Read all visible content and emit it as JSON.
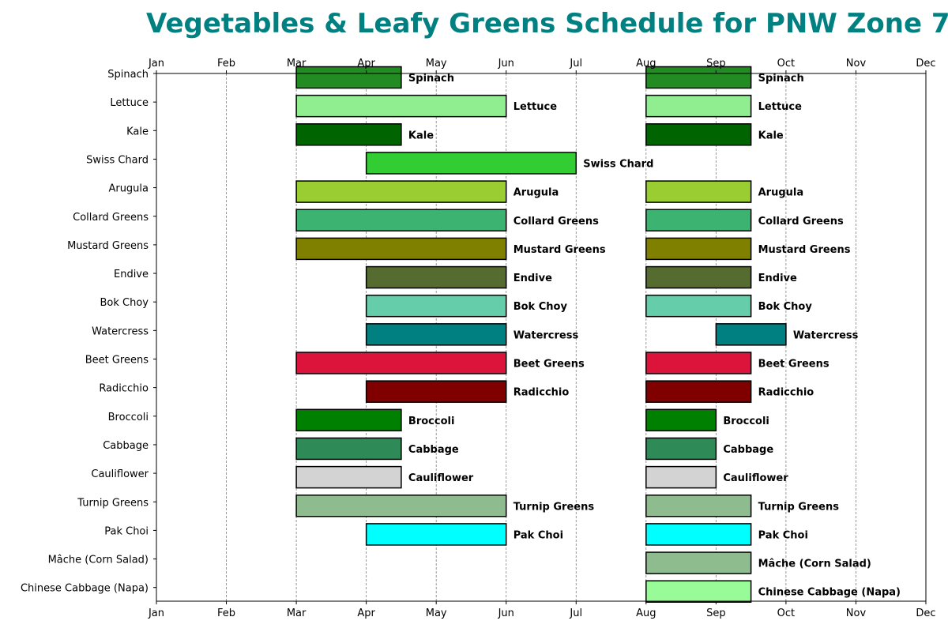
{
  "chart_data": {
    "type": "bar",
    "orientation": "horizontal-gantt",
    "title": "Vegetables & Leafy Greens Schedule for PNW Zone 7",
    "title_color": "#008080",
    "xlabel": "",
    "ylabel": "",
    "x_unit": "month",
    "xlim": [
      0,
      11
    ],
    "x_ticks": [
      "Jan",
      "Feb",
      "Mar",
      "Apr",
      "May",
      "Jun",
      "Jul",
      "Aug",
      "Sep",
      "Oct",
      "Nov",
      "Dec"
    ],
    "x_tick_positions": "top and bottom",
    "grid": "vertical dashed",
    "legend": "none",
    "categories": [
      "Spinach",
      "Lettuce",
      "Kale",
      "Swiss Chard",
      "Arugula",
      "Collard Greens",
      "Mustard Greens",
      "Endive",
      "Bok Choy",
      "Watercress",
      "Beet Greens",
      "Radicchio",
      "Broccoli",
      "Cabbage",
      "Cauliflower",
      "Turnip Greens",
      "Pak Choi",
      "Mâche (Corn Salad)",
      "Chinese Cabbage (Napa)"
    ],
    "series": [
      {
        "values": [
          {
            "category": "Spinach",
            "color": "#228B22",
            "periods": [
              [
                2.0,
                3.5
              ],
              [
                7.0,
                8.5
              ]
            ]
          },
          {
            "category": "Lettuce",
            "color": "#90EE90",
            "periods": [
              [
                2.0,
                5.0
              ],
              [
                7.0,
                8.5
              ]
            ]
          },
          {
            "category": "Kale",
            "color": "#006400",
            "periods": [
              [
                2.0,
                3.5
              ],
              [
                7.0,
                8.5
              ]
            ]
          },
          {
            "category": "Swiss Chard",
            "color": "#32CD32",
            "periods": [
              [
                3.0,
                6.0
              ]
            ]
          },
          {
            "category": "Arugula",
            "color": "#9ACD32",
            "periods": [
              [
                2.0,
                5.0
              ],
              [
                7.0,
                8.5
              ]
            ]
          },
          {
            "category": "Collard Greens",
            "color": "#3CB371",
            "periods": [
              [
                2.0,
                5.0
              ],
              [
                7.0,
                8.5
              ]
            ]
          },
          {
            "category": "Mustard Greens",
            "color": "#808000",
            "periods": [
              [
                2.0,
                5.0
              ],
              [
                7.0,
                8.5
              ]
            ]
          },
          {
            "category": "Endive",
            "color": "#556B2F",
            "periods": [
              [
                3.0,
                5.0
              ],
              [
                7.0,
                8.5
              ]
            ]
          },
          {
            "category": "Bok Choy",
            "color": "#66CDAA",
            "periods": [
              [
                3.0,
                5.0
              ],
              [
                7.0,
                8.5
              ]
            ]
          },
          {
            "category": "Watercress",
            "color": "#008080",
            "periods": [
              [
                3.0,
                5.0
              ],
              [
                8.0,
                9.0
              ]
            ]
          },
          {
            "category": "Beet Greens",
            "color": "#DC143C",
            "periods": [
              [
                2.0,
                5.0
              ],
              [
                7.0,
                8.5
              ]
            ]
          },
          {
            "category": "Radicchio",
            "color": "#800000",
            "periods": [
              [
                3.0,
                5.0
              ],
              [
                7.0,
                8.5
              ]
            ]
          },
          {
            "category": "Broccoli",
            "color": "#008000",
            "periods": [
              [
                2.0,
                3.5
              ],
              [
                7.0,
                8.0
              ]
            ]
          },
          {
            "category": "Cabbage",
            "color": "#2E8B57",
            "periods": [
              [
                2.0,
                3.5
              ],
              [
                7.0,
                8.0
              ]
            ]
          },
          {
            "category": "Cauliflower",
            "color": "#D3D3D3",
            "periods": [
              [
                2.0,
                3.5
              ],
              [
                7.0,
                8.0
              ]
            ]
          },
          {
            "category": "Turnip Greens",
            "color": "#8FBC8F",
            "periods": [
              [
                2.0,
                5.0
              ],
              [
                7.0,
                8.5
              ]
            ]
          },
          {
            "category": "Pak Choi",
            "color": "#00FFFF",
            "periods": [
              [
                3.0,
                5.0
              ],
              [
                7.0,
                8.5
              ]
            ]
          },
          {
            "category": "Mâche (Corn Salad)",
            "color": "#8FBC8F",
            "periods": [
              [
                7.0,
                8.5
              ]
            ]
          },
          {
            "category": "Chinese Cabbage (Napa)",
            "color": "#98FB98",
            "periods": [
              [
                7.0,
                8.5
              ]
            ]
          }
        ]
      }
    ]
  }
}
